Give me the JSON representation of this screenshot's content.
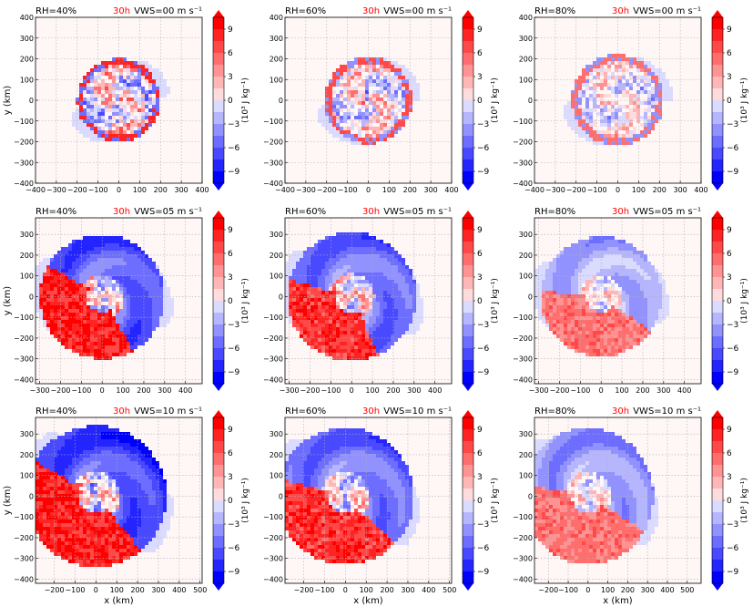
{
  "figure": {
    "time_label": "30h",
    "time_color": "#ff0000",
    "colorbar_label": "(10³ J kg⁻¹)",
    "colorbar_ticks": [
      9,
      6,
      3,
      0,
      -3,
      -6,
      -9
    ],
    "colorbar_range": [
      -10.5,
      10.5
    ],
    "colormap": {
      "negative": "#0000ff",
      "zero": "#ffffff",
      "positive": "#ff0000"
    },
    "xlabel": "x (km)",
    "ylabel": "y (km)",
    "grid": true
  },
  "chart_data": [
    {
      "type": "heatmap",
      "rh_label": "RH=40%",
      "vws_label": "VWS=00 m s⁻¹",
      "xlim": [
        -400,
        400
      ],
      "ylim": [
        -400,
        400
      ],
      "xticks": [
        -400,
        -300,
        -200,
        -100,
        0,
        100,
        200,
        300,
        400
      ],
      "yticks": [
        -400,
        -300,
        -200,
        -100,
        0,
        100,
        200,
        300,
        400
      ],
      "features": {
        "ring_radius": 200,
        "pos_sector_center_deg": 0,
        "pos_sector_width_deg": 360,
        "pos_strength": 6,
        "neg_strength": 2,
        "shift": [
          0,
          0
        ]
      }
    },
    {
      "type": "heatmap",
      "rh_label": "RH=60%",
      "vws_label": "VWS=00 m s⁻¹",
      "xlim": [
        -400,
        400
      ],
      "ylim": [
        -400,
        400
      ],
      "xticks": [
        -400,
        -300,
        -200,
        -100,
        0,
        100,
        200,
        300,
        400
      ],
      "yticks": [
        -400,
        -300,
        -200,
        -100,
        0,
        100,
        200,
        300,
        400
      ],
      "features": {
        "ring_radius": 210,
        "pos_sector_center_deg": 0,
        "pos_sector_width_deg": 360,
        "pos_strength": 5,
        "neg_strength": 2,
        "shift": [
          0,
          0
        ]
      }
    },
    {
      "type": "heatmap",
      "rh_label": "RH=80%",
      "vws_label": "VWS=00 m s⁻¹",
      "xlim": [
        -400,
        400
      ],
      "ylim": [
        -400,
        400
      ],
      "xticks": [
        -400,
        -300,
        -200,
        -100,
        0,
        100,
        200,
        300,
        400
      ],
      "yticks": [
        -400,
        -300,
        -200,
        -100,
        0,
        100,
        200,
        300,
        400
      ],
      "features": {
        "ring_radius": 220,
        "pos_sector_center_deg": 0,
        "pos_sector_width_deg": 360,
        "pos_strength": 4,
        "neg_strength": 2,
        "shift": [
          0,
          0
        ]
      }
    },
    {
      "type": "heatmap",
      "rh_label": "RH=40%",
      "vws_label": "VWS=05 m s⁻¹",
      "xlim": [
        -320,
        480
      ],
      "ylim": [
        -420,
        380
      ],
      "xticks": [
        -300,
        -200,
        -100,
        0,
        100,
        200,
        300,
        400
      ],
      "yticks": [
        -400,
        -300,
        -200,
        -100,
        0,
        100,
        200,
        300
      ],
      "features": {
        "ring_radius": 300,
        "pos_sector_center_deg": 225,
        "pos_sector_width_deg": 150,
        "pos_strength": 10,
        "neg_strength": 8,
        "shift": [
          50,
          -20
        ]
      }
    },
    {
      "type": "heatmap",
      "rh_label": "RH=60%",
      "vws_label": "VWS=05 m s⁻¹",
      "xlim": [
        -320,
        480
      ],
      "ylim": [
        -420,
        380
      ],
      "xticks": [
        -300,
        -200,
        -100,
        0,
        100,
        200,
        300,
        400
      ],
      "yticks": [
        -400,
        -300,
        -200,
        -100,
        0,
        100,
        200,
        300
      ],
      "features": {
        "ring_radius": 310,
        "pos_sector_center_deg": 230,
        "pos_sector_width_deg": 130,
        "pos_strength": 9,
        "neg_strength": 7,
        "shift": [
          50,
          -20
        ]
      }
    },
    {
      "type": "heatmap",
      "rh_label": "RH=80%",
      "vws_label": "VWS=05 m s⁻¹",
      "xlim": [
        -320,
        480
      ],
      "ylim": [
        -420,
        380
      ],
      "xticks": [
        -300,
        -200,
        -100,
        0,
        100,
        200,
        300,
        400
      ],
      "yticks": [
        -400,
        -300,
        -200,
        -100,
        0,
        100,
        200,
        300
      ],
      "features": {
        "ring_radius": 290,
        "pos_sector_center_deg": 250,
        "pos_sector_width_deg": 150,
        "pos_strength": 6,
        "neg_strength": 4,
        "shift": [
          60,
          -40
        ]
      }
    },
    {
      "type": "heatmap",
      "rh_label": "RH=40%",
      "vws_label": "VWS=10 m s⁻¹",
      "xlim": [
        -290,
        510
      ],
      "ylim": [
        -420,
        380
      ],
      "xticks": [
        -200,
        -100,
        0,
        100,
        200,
        300,
        400,
        500
      ],
      "yticks": [
        -400,
        -300,
        -200,
        -100,
        0,
        100,
        200,
        300
      ],
      "features": {
        "ring_radius": 340,
        "pos_sector_center_deg": 230,
        "pos_sector_width_deg": 160,
        "pos_strength": 10,
        "neg_strength": 9,
        "shift": [
          110,
          -40
        ]
      }
    },
    {
      "type": "heatmap",
      "rh_label": "RH=60%",
      "vws_label": "VWS=10 m s⁻¹",
      "xlim": [
        -290,
        510
      ],
      "ylim": [
        -420,
        380
      ],
      "xticks": [
        -200,
        -100,
        0,
        100,
        200,
        300,
        400,
        500
      ],
      "yticks": [
        -400,
        -300,
        -200,
        -100,
        0,
        100,
        200,
        300
      ],
      "features": {
        "ring_radius": 330,
        "pos_sector_center_deg": 240,
        "pos_sector_width_deg": 150,
        "pos_strength": 9,
        "neg_strength": 7,
        "shift": [
          120,
          -40
        ]
      }
    },
    {
      "type": "heatmap",
      "rh_label": "RH=80%",
      "vws_label": "VWS=10 m s⁻¹",
      "xlim": [
        -270,
        570
      ],
      "ylim": [
        -420,
        380
      ],
      "xticks": [
        -200,
        -100,
        0,
        100,
        200,
        300,
        400,
        500
      ],
      "yticks": [
        -400,
        -300,
        -200,
        -100,
        0,
        100,
        200,
        300
      ],
      "features": {
        "ring_radius": 330,
        "pos_sector_center_deg": 250,
        "pos_sector_width_deg": 160,
        "pos_strength": 6,
        "neg_strength": 5,
        "shift": [
          140,
          -60
        ]
      }
    }
  ]
}
